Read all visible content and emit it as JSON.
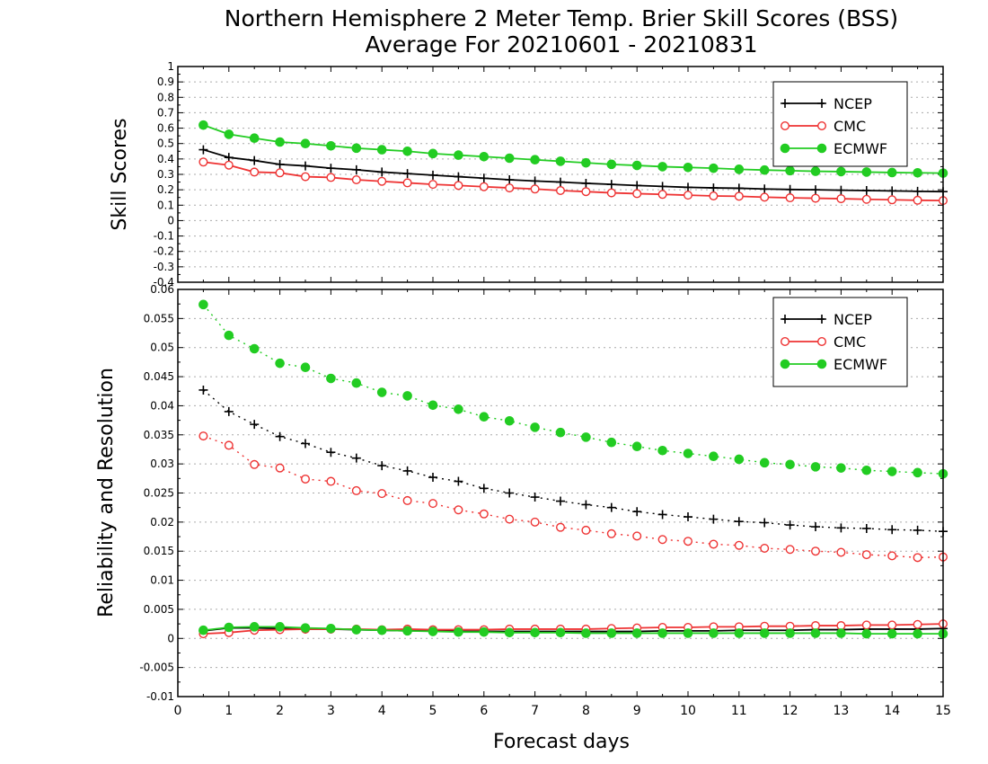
{
  "title_line1": "Northern Hemisphere 2 Meter Temp. Brier Skill Scores (BSS)",
  "title_line2": "Average For 20210601 - 20210831",
  "xlabel": "Forecast days",
  "colors": {
    "NCEP": "#000000",
    "CMC": "#ee3333",
    "ECMWF": "#22cc22",
    "grid": "#aaaaaa"
  },
  "chart_data": [
    {
      "type": "line",
      "ylabel": "Skill Scores",
      "xlim": [
        0,
        15
      ],
      "ylim": [
        -0.4,
        1
      ],
      "x_ticks": [
        0,
        1,
        2,
        3,
        4,
        5,
        6,
        7,
        8,
        9,
        10,
        11,
        12,
        13,
        14,
        15
      ],
      "y_ticks": [
        -0.4,
        -0.3,
        -0.2,
        -0.1,
        0,
        0.1,
        0.2,
        0.3,
        0.4,
        0.5,
        0.6,
        0.7,
        0.8,
        0.9,
        1
      ],
      "y_tick_labels": [
        "-0.4",
        "-0.3",
        "-0.2",
        "-0.1",
        "0",
        "0.1",
        "0.2",
        "0.3",
        "0.4",
        "0.5",
        "0.6",
        "0.7",
        "0.8",
        "0.9",
        "1"
      ],
      "grid": true,
      "legend": "top-right",
      "x": [
        0.5,
        1,
        1.5,
        2,
        2.5,
        3,
        3.5,
        4,
        4.5,
        5,
        5.5,
        6,
        6.5,
        7,
        7.5,
        8,
        8.5,
        9,
        9.5,
        10,
        10.5,
        11,
        11.5,
        12,
        12.5,
        13,
        13.5,
        14,
        14.5,
        15
      ],
      "series": [
        {
          "name": "NCEP",
          "style": "solid",
          "marker": "plus",
          "values": [
            0.46,
            0.41,
            0.39,
            0.365,
            0.355,
            0.34,
            0.33,
            0.315,
            0.305,
            0.295,
            0.285,
            0.275,
            0.265,
            0.257,
            0.25,
            0.242,
            0.235,
            0.228,
            0.222,
            0.216,
            0.212,
            0.21,
            0.205,
            0.202,
            0.2,
            0.197,
            0.195,
            0.193,
            0.19,
            0.188
          ]
        },
        {
          "name": "CMC",
          "style": "solid",
          "marker": "open-circle",
          "values": [
            0.38,
            0.36,
            0.315,
            0.31,
            0.285,
            0.28,
            0.265,
            0.255,
            0.245,
            0.235,
            0.228,
            0.22,
            0.212,
            0.205,
            0.195,
            0.188,
            0.18,
            0.175,
            0.17,
            0.165,
            0.16,
            0.158,
            0.152,
            0.148,
            0.145,
            0.142,
            0.138,
            0.135,
            0.132,
            0.13
          ]
        },
        {
          "name": "ECMWF",
          "style": "solid",
          "marker": "filled-circle",
          "values": [
            0.62,
            0.56,
            0.535,
            0.51,
            0.5,
            0.485,
            0.47,
            0.46,
            0.45,
            0.435,
            0.425,
            0.415,
            0.405,
            0.395,
            0.385,
            0.375,
            0.365,
            0.358,
            0.35,
            0.345,
            0.34,
            0.333,
            0.328,
            0.324,
            0.32,
            0.318,
            0.315,
            0.312,
            0.31,
            0.308
          ]
        }
      ]
    },
    {
      "type": "line",
      "ylabel": "Reliability and Resolution",
      "xlim": [
        0,
        15
      ],
      "ylim": [
        -0.01,
        0.06
      ],
      "x_ticks": [
        0,
        1,
        2,
        3,
        4,
        5,
        6,
        7,
        8,
        9,
        10,
        11,
        12,
        13,
        14,
        15
      ],
      "y_ticks": [
        -0.01,
        -0.005,
        0,
        0.005,
        0.01,
        0.015,
        0.02,
        0.025,
        0.03,
        0.035,
        0.04,
        0.045,
        0.05,
        0.055,
        0.06
      ],
      "y_tick_labels": [
        "-0.01",
        "-0.005",
        "0",
        "0.005",
        "0.01",
        "0.015",
        "0.02",
        "0.025",
        "0.03",
        "0.035",
        "0.04",
        "0.045",
        "0.05",
        "0.055",
        "0.06"
      ],
      "grid": true,
      "legend": "top-right",
      "x": [
        0.5,
        1,
        1.5,
        2,
        2.5,
        3,
        3.5,
        4,
        4.5,
        5,
        5.5,
        6,
        6.5,
        7,
        7.5,
        8,
        8.5,
        9,
        9.5,
        10,
        10.5,
        11,
        11.5,
        12,
        12.5,
        13,
        13.5,
        14,
        14.5,
        15
      ],
      "series": [
        {
          "name": "NCEP",
          "style": "dotted",
          "marker": "plus",
          "values": [
            0.0427,
            0.039,
            0.0368,
            0.0347,
            0.0335,
            0.032,
            0.031,
            0.0297,
            0.0288,
            0.0277,
            0.027,
            0.0258,
            0.025,
            0.0243,
            0.0236,
            0.023,
            0.0225,
            0.0218,
            0.0213,
            0.0209,
            0.0205,
            0.0201,
            0.0199,
            0.0195,
            0.0192,
            0.019,
            0.0189,
            0.0187,
            0.0186,
            0.0184
          ]
        },
        {
          "name": "CMC",
          "style": "dotted",
          "marker": "open-circle",
          "values": [
            0.0348,
            0.0332,
            0.0299,
            0.0293,
            0.0274,
            0.027,
            0.0254,
            0.0249,
            0.0237,
            0.0232,
            0.0221,
            0.0214,
            0.0205,
            0.02,
            0.0191,
            0.0186,
            0.018,
            0.0176,
            0.017,
            0.0167,
            0.0162,
            0.016,
            0.0155,
            0.0153,
            0.015,
            0.0148,
            0.0144,
            0.0142,
            0.0139,
            0.014
          ]
        },
        {
          "name": "ECMWF",
          "style": "dotted",
          "marker": "filled-circle",
          "values": [
            0.0574,
            0.0521,
            0.0498,
            0.0473,
            0.0466,
            0.0447,
            0.0439,
            0.0423,
            0.0417,
            0.0401,
            0.0394,
            0.0381,
            0.0374,
            0.0363,
            0.0354,
            0.0346,
            0.0337,
            0.033,
            0.0323,
            0.0318,
            0.0313,
            0.0308,
            0.0302,
            0.0299,
            0.0295,
            0.0293,
            0.0289,
            0.0287,
            0.0285,
            0.0283
          ]
        },
        {
          "name": "NCEP",
          "style": "solid",
          "marker": "plus",
          "in_legend": false,
          "values": [
            0.0013,
            0.0018,
            0.0018,
            0.0017,
            0.0016,
            0.0016,
            0.0015,
            0.0014,
            0.0013,
            0.0013,
            0.0012,
            0.0012,
            0.0012,
            0.0012,
            0.0012,
            0.0012,
            0.0012,
            0.0012,
            0.0013,
            0.0013,
            0.0013,
            0.0014,
            0.0014,
            0.0014,
            0.0015,
            0.0015,
            0.0016,
            0.0016,
            0.0016,
            0.0017
          ]
        },
        {
          "name": "CMC",
          "style": "solid",
          "marker": "open-circle",
          "in_legend": false,
          "values": [
            0.0008,
            0.001,
            0.0014,
            0.0015,
            0.0016,
            0.0016,
            0.0016,
            0.0015,
            0.0016,
            0.0015,
            0.0015,
            0.0015,
            0.0016,
            0.0016,
            0.0016,
            0.0016,
            0.0017,
            0.0018,
            0.0019,
            0.0019,
            0.002,
            0.002,
            0.0021,
            0.0021,
            0.0022,
            0.0022,
            0.0023,
            0.0023,
            0.0024,
            0.0025
          ]
        },
        {
          "name": "ECMWF",
          "style": "solid",
          "marker": "filled-circle",
          "in_legend": false,
          "values": [
            0.0014,
            0.0019,
            0.002,
            0.002,
            0.0018,
            0.0017,
            0.0015,
            0.0014,
            0.0013,
            0.0012,
            0.0011,
            0.0011,
            0.001,
            0.001,
            0.001,
            0.0009,
            0.0009,
            0.0009,
            0.0009,
            0.0009,
            0.0009,
            0.0009,
            0.0009,
            0.0009,
            0.0009,
            0.0009,
            0.0008,
            0.0008,
            0.0008,
            0.0008
          ]
        }
      ]
    }
  ]
}
